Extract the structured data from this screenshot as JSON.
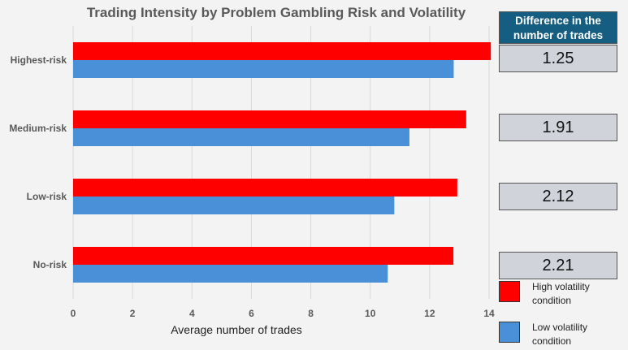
{
  "chart_data": {
    "type": "bar",
    "orientation": "horizontal",
    "title": "Trading Intensity by Problem Gambling Risk and Volatility",
    "xlabel": "Average number of trades",
    "ylabel": "",
    "categories": [
      "Highest-risk",
      "Medium-risk",
      "Low-risk",
      "No-risk"
    ],
    "series": [
      {
        "name": "High volatility condition",
        "color": "#ff0000",
        "values": [
          14.06,
          13.23,
          12.93,
          12.8
        ]
      },
      {
        "name": "Low volatility condition",
        "color": "#4a90d9",
        "values": [
          12.81,
          11.32,
          10.81,
          10.59
        ]
      }
    ],
    "xlim": [
      0,
      14
    ],
    "xticks": [
      0,
      2,
      4,
      6,
      8,
      10,
      12,
      14
    ],
    "grid": "vertical",
    "legend": "bottom-right"
  },
  "table": {
    "header": "Difference in the number of trades",
    "values": [
      "1.25",
      "1.91",
      "2.12",
      "2.21"
    ]
  },
  "legend": [
    {
      "label": "High volatility condition",
      "color": "#ff0000"
    },
    {
      "label": "Low volatility condition",
      "color": "#4a90d9"
    }
  ]
}
